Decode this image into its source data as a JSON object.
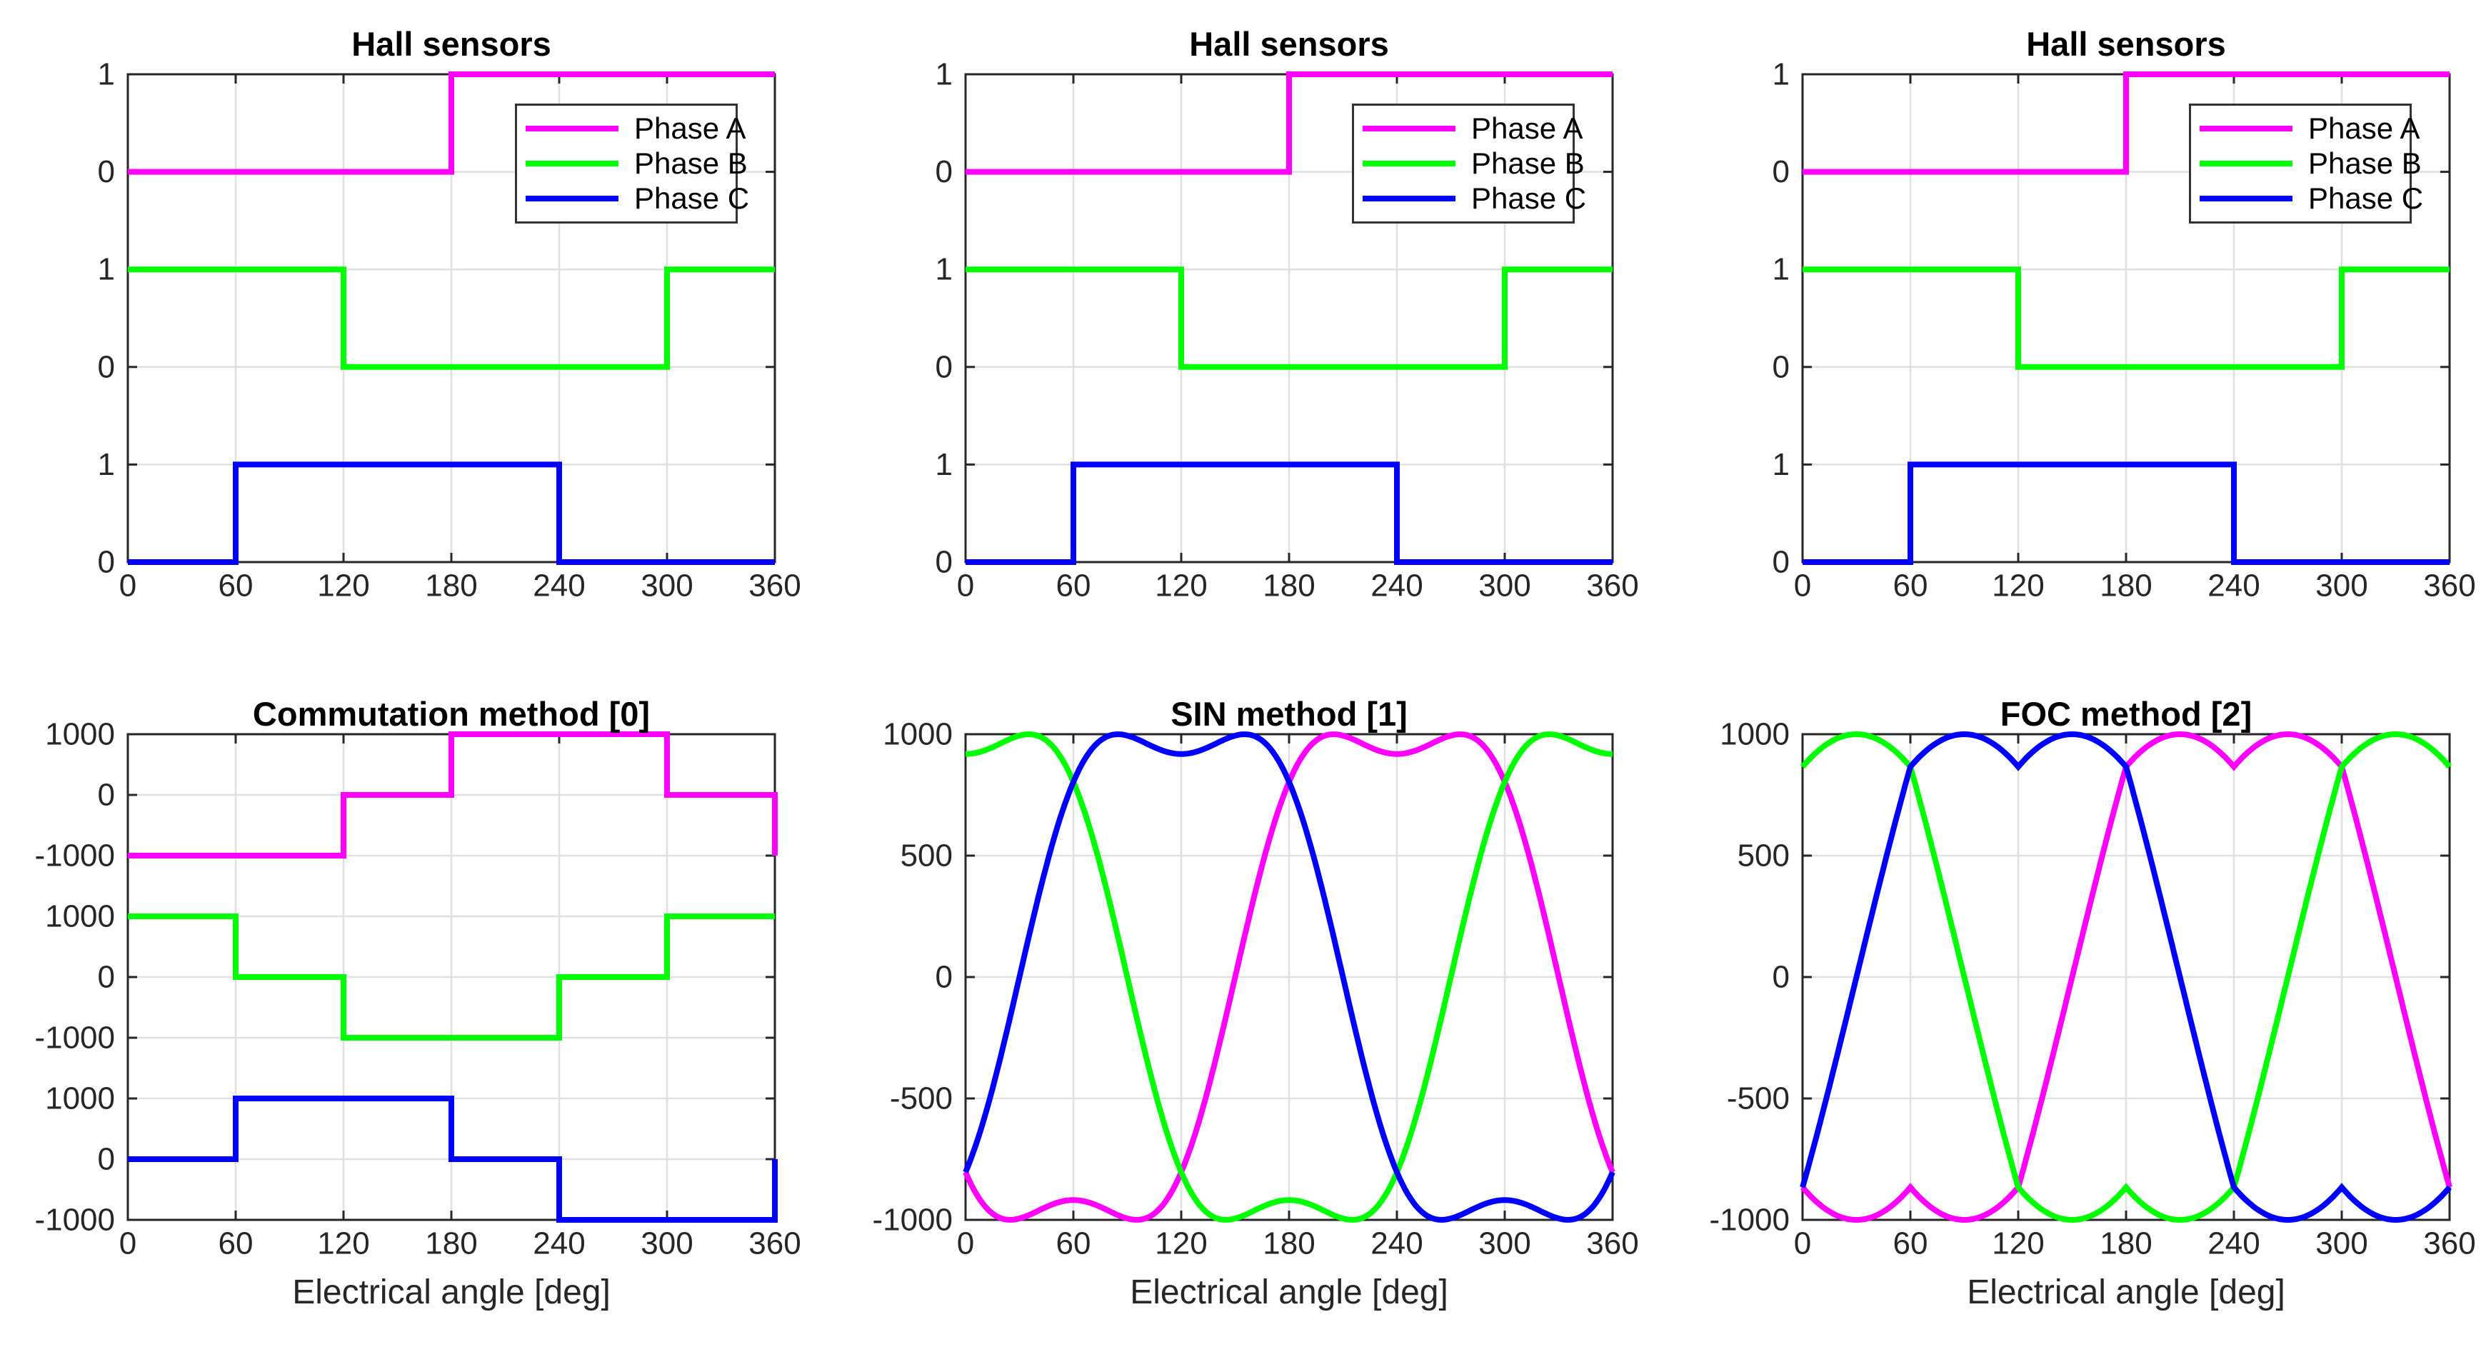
{
  "figure_background": "#ffffff",
  "x_axis_label": "Electrical angle [deg]",
  "colors": {
    "phase_a": "#ff00ff",
    "phase_b": "#00ff00",
    "phase_c": "#0000ff",
    "grid": "#e0e0e0",
    "axis": "#262626",
    "tick_text": "#262626",
    "title_text": "#000000"
  },
  "legend": {
    "position": "upper-right",
    "items": [
      {
        "label": "Phase A",
        "color": "phase_a"
      },
      {
        "label": "Phase B",
        "color": "phase_b"
      },
      {
        "label": "Phase C",
        "color": "phase_c"
      }
    ]
  },
  "chart_data": [
    {
      "type": "line",
      "title": "Hall sensors",
      "row": 0,
      "col": 0,
      "xlabel": "",
      "xlim": [
        0,
        360
      ],
      "xticks": [
        0,
        60,
        120,
        180,
        240,
        300,
        360
      ],
      "ylim": [
        0,
        5
      ],
      "grid": true,
      "has_legend": true,
      "yticks": [
        {
          "v": 5,
          "label": "1"
        },
        {
          "v": 4,
          "label": "0"
        },
        {
          "v": 3,
          "label": "1"
        },
        {
          "v": 2,
          "label": "0"
        },
        {
          "v": 1,
          "label": "1"
        },
        {
          "v": 0,
          "label": "0"
        }
      ],
      "series": [
        {
          "name": "Phase A",
          "color": "phase_a",
          "offset": 4,
          "points": [
            [
              0,
              0
            ],
            [
              180,
              0
            ],
            [
              180,
              1
            ],
            [
              360,
              1
            ]
          ]
        },
        {
          "name": "Phase B",
          "color": "phase_b",
          "offset": 2,
          "points": [
            [
              0,
              1
            ],
            [
              120,
              1
            ],
            [
              120,
              0
            ],
            [
              300,
              0
            ],
            [
              300,
              1
            ],
            [
              360,
              1
            ]
          ]
        },
        {
          "name": "Phase C",
          "color": "phase_c",
          "offset": 0,
          "points": [
            [
              0,
              0
            ],
            [
              60,
              0
            ],
            [
              60,
              1
            ],
            [
              240,
              1
            ],
            [
              240,
              0
            ],
            [
              360,
              0
            ]
          ]
        }
      ]
    },
    {
      "type": "line",
      "title": "Hall sensors",
      "row": 0,
      "col": 1,
      "xlabel": "",
      "xlim": [
        0,
        360
      ],
      "xticks": [
        0,
        60,
        120,
        180,
        240,
        300,
        360
      ],
      "ylim": [
        0,
        5
      ],
      "grid": true,
      "has_legend": true,
      "yticks": [
        {
          "v": 5,
          "label": "1"
        },
        {
          "v": 4,
          "label": "0"
        },
        {
          "v": 3,
          "label": "1"
        },
        {
          "v": 2,
          "label": "0"
        },
        {
          "v": 1,
          "label": "1"
        },
        {
          "v": 0,
          "label": "0"
        }
      ],
      "series": [
        {
          "name": "Phase A",
          "color": "phase_a",
          "offset": 4,
          "points": [
            [
              0,
              0
            ],
            [
              180,
              0
            ],
            [
              180,
              1
            ],
            [
              360,
              1
            ]
          ]
        },
        {
          "name": "Phase B",
          "color": "phase_b",
          "offset": 2,
          "points": [
            [
              0,
              1
            ],
            [
              120,
              1
            ],
            [
              120,
              0
            ],
            [
              300,
              0
            ],
            [
              300,
              1
            ],
            [
              360,
              1
            ]
          ]
        },
        {
          "name": "Phase C",
          "color": "phase_c",
          "offset": 0,
          "points": [
            [
              0,
              0
            ],
            [
              60,
              0
            ],
            [
              60,
              1
            ],
            [
              240,
              1
            ],
            [
              240,
              0
            ],
            [
              360,
              0
            ]
          ]
        }
      ]
    },
    {
      "type": "line",
      "title": "Hall sensors",
      "row": 0,
      "col": 2,
      "xlabel": "",
      "xlim": [
        0,
        360
      ],
      "xticks": [
        0,
        60,
        120,
        180,
        240,
        300,
        360
      ],
      "ylim": [
        0,
        5
      ],
      "grid": true,
      "has_legend": true,
      "yticks": [
        {
          "v": 5,
          "label": "1"
        },
        {
          "v": 4,
          "label": "0"
        },
        {
          "v": 3,
          "label": "1"
        },
        {
          "v": 2,
          "label": "0"
        },
        {
          "v": 1,
          "label": "1"
        },
        {
          "v": 0,
          "label": "0"
        }
      ],
      "series": [
        {
          "name": "Phase A",
          "color": "phase_a",
          "offset": 4,
          "points": [
            [
              0,
              0
            ],
            [
              180,
              0
            ],
            [
              180,
              1
            ],
            [
              360,
              1
            ]
          ]
        },
        {
          "name": "Phase B",
          "color": "phase_b",
          "offset": 2,
          "points": [
            [
              0,
              1
            ],
            [
              120,
              1
            ],
            [
              120,
              0
            ],
            [
              300,
              0
            ],
            [
              300,
              1
            ],
            [
              360,
              1
            ]
          ]
        },
        {
          "name": "Phase C",
          "color": "phase_c",
          "offset": 0,
          "points": [
            [
              0,
              0
            ],
            [
              60,
              0
            ],
            [
              60,
              1
            ],
            [
              240,
              1
            ],
            [
              240,
              0
            ],
            [
              360,
              0
            ]
          ]
        }
      ]
    },
    {
      "type": "line",
      "title": "Commutation method [0]",
      "row": 1,
      "col": 0,
      "xlabel": "Electrical angle [deg]",
      "xlim": [
        0,
        360
      ],
      "xticks": [
        0,
        60,
        120,
        180,
        240,
        300,
        360
      ],
      "ylim": [
        -1000,
        7000
      ],
      "grid": true,
      "has_legend": false,
      "yticks": [
        {
          "v": 7000,
          "label": "1000"
        },
        {
          "v": 6000,
          "label": "0"
        },
        {
          "v": 5000,
          "label": "-1000"
        },
        {
          "v": 4000,
          "label": "1000"
        },
        {
          "v": 3000,
          "label": "0"
        },
        {
          "v": 2000,
          "label": "-1000"
        },
        {
          "v": 1000,
          "label": "1000"
        },
        {
          "v": 0,
          "label": "0"
        },
        {
          "v": -1000,
          "label": "-1000"
        }
      ],
      "series": [
        {
          "name": "Phase A",
          "color": "phase_a",
          "offset": 6000,
          "points": [
            [
              0,
              -1000
            ],
            [
              120,
              -1000
            ],
            [
              120,
              0
            ],
            [
              180,
              0
            ],
            [
              180,
              1000
            ],
            [
              300,
              1000
            ],
            [
              300,
              0
            ],
            [
              360,
              0
            ],
            [
              360,
              -1000
            ]
          ]
        },
        {
          "name": "Phase B",
          "color": "phase_b",
          "offset": 3000,
          "points": [
            [
              0,
              1000
            ],
            [
              60,
              1000
            ],
            [
              60,
              0
            ],
            [
              120,
              0
            ],
            [
              120,
              -1000
            ],
            [
              240,
              -1000
            ],
            [
              240,
              0
            ],
            [
              300,
              0
            ],
            [
              300,
              1000
            ],
            [
              360,
              1000
            ]
          ]
        },
        {
          "name": "Phase C",
          "color": "phase_c",
          "offset": 0,
          "points": [
            [
              0,
              0
            ],
            [
              60,
              0
            ],
            [
              60,
              1000
            ],
            [
              180,
              1000
            ],
            [
              180,
              0
            ],
            [
              240,
              0
            ],
            [
              240,
              -1000
            ],
            [
              360,
              -1000
            ],
            [
              360,
              0
            ]
          ]
        }
      ]
    },
    {
      "type": "line",
      "title": "SIN method [1]",
      "row": 1,
      "col": 1,
      "xlabel": "Electrical angle [deg]",
      "xlim": [
        0,
        360
      ],
      "xticks": [
        0,
        60,
        120,
        180,
        240,
        300,
        360
      ],
      "ylim": [
        -1000,
        1000
      ],
      "grid": true,
      "has_legend": false,
      "yticks": [
        {
          "v": 1000,
          "label": "1000"
        },
        {
          "v": 500,
          "label": "500"
        },
        {
          "v": 0,
          "label": "0"
        },
        {
          "v": -500,
          "label": "-500"
        },
        {
          "v": -1000,
          "label": "-1000"
        }
      ],
      "sample_x_deg": [
        0,
        30,
        60,
        90,
        120,
        150,
        180,
        210,
        240,
        270,
        300,
        330,
        360
      ],
      "series": [
        {
          "name": "Phase A",
          "color": "phase_a",
          "gen": {
            "kind": "sin3h",
            "amp": 1148,
            "k": 0.2,
            "phase_deg": -150
          },
          "values_every_30deg": [
            -804,
            -994,
            -918,
            -994,
            -804,
            0,
            804,
            994,
            918,
            994,
            804,
            0,
            -804
          ]
        },
        {
          "name": "Phase B",
          "color": "phase_b",
          "gen": {
            "kind": "sin3h",
            "amp": 1148,
            "k": 0.2,
            "phase_deg": 90
          },
          "values_every_30deg": [
            918,
            994,
            804,
            0,
            -804,
            -994,
            -918,
            -994,
            -804,
            0,
            804,
            994,
            918
          ]
        },
        {
          "name": "Phase C",
          "color": "phase_c",
          "gen": {
            "kind": "sin3h",
            "amp": 1148,
            "k": 0.2,
            "phase_deg": -30
          },
          "values_every_30deg": [
            -804,
            0,
            804,
            994,
            918,
            994,
            804,
            0,
            -804,
            -994,
            -918,
            -994,
            -804
          ]
        }
      ]
    },
    {
      "type": "line",
      "title": "FOC method [2]",
      "row": 1,
      "col": 2,
      "xlabel": "Electrical angle [deg]",
      "xlim": [
        0,
        360
      ],
      "xticks": [
        0,
        60,
        120,
        180,
        240,
        300,
        360
      ],
      "ylim": [
        -1000,
        1000
      ],
      "grid": true,
      "has_legend": false,
      "yticks": [
        {
          "v": 1000,
          "label": "1000"
        },
        {
          "v": 500,
          "label": "500"
        },
        {
          "v": 0,
          "label": "0"
        },
        {
          "v": -500,
          "label": "-500"
        },
        {
          "v": -1000,
          "label": "-1000"
        }
      ],
      "sample_x_deg": [
        0,
        30,
        60,
        90,
        120,
        150,
        180,
        210,
        240,
        270,
        300,
        330,
        360
      ],
      "series": [
        {
          "name": "Phase A",
          "color": "phase_a",
          "gen": {
            "kind": "svpwm",
            "amp": 1154.7,
            "phase_deg": -150
          },
          "values_every_30deg": [
            -866,
            -1000,
            -866,
            -1000,
            -866,
            0,
            866,
            1000,
            866,
            1000,
            866,
            0,
            -866
          ]
        },
        {
          "name": "Phase B",
          "color": "phase_b",
          "gen": {
            "kind": "svpwm",
            "amp": 1154.7,
            "phase_deg": 90
          },
          "values_every_30deg": [
            866,
            1000,
            866,
            0,
            -866,
            -1000,
            -866,
            -1000,
            -866,
            0,
            866,
            1000,
            866
          ]
        },
        {
          "name": "Phase C",
          "color": "phase_c",
          "gen": {
            "kind": "svpwm",
            "amp": 1154.7,
            "phase_deg": -30
          },
          "values_every_30deg": [
            -866,
            0,
            866,
            1000,
            866,
            1000,
            866,
            0,
            -866,
            -1000,
            -866,
            -1000,
            -866
          ]
        }
      ]
    }
  ]
}
